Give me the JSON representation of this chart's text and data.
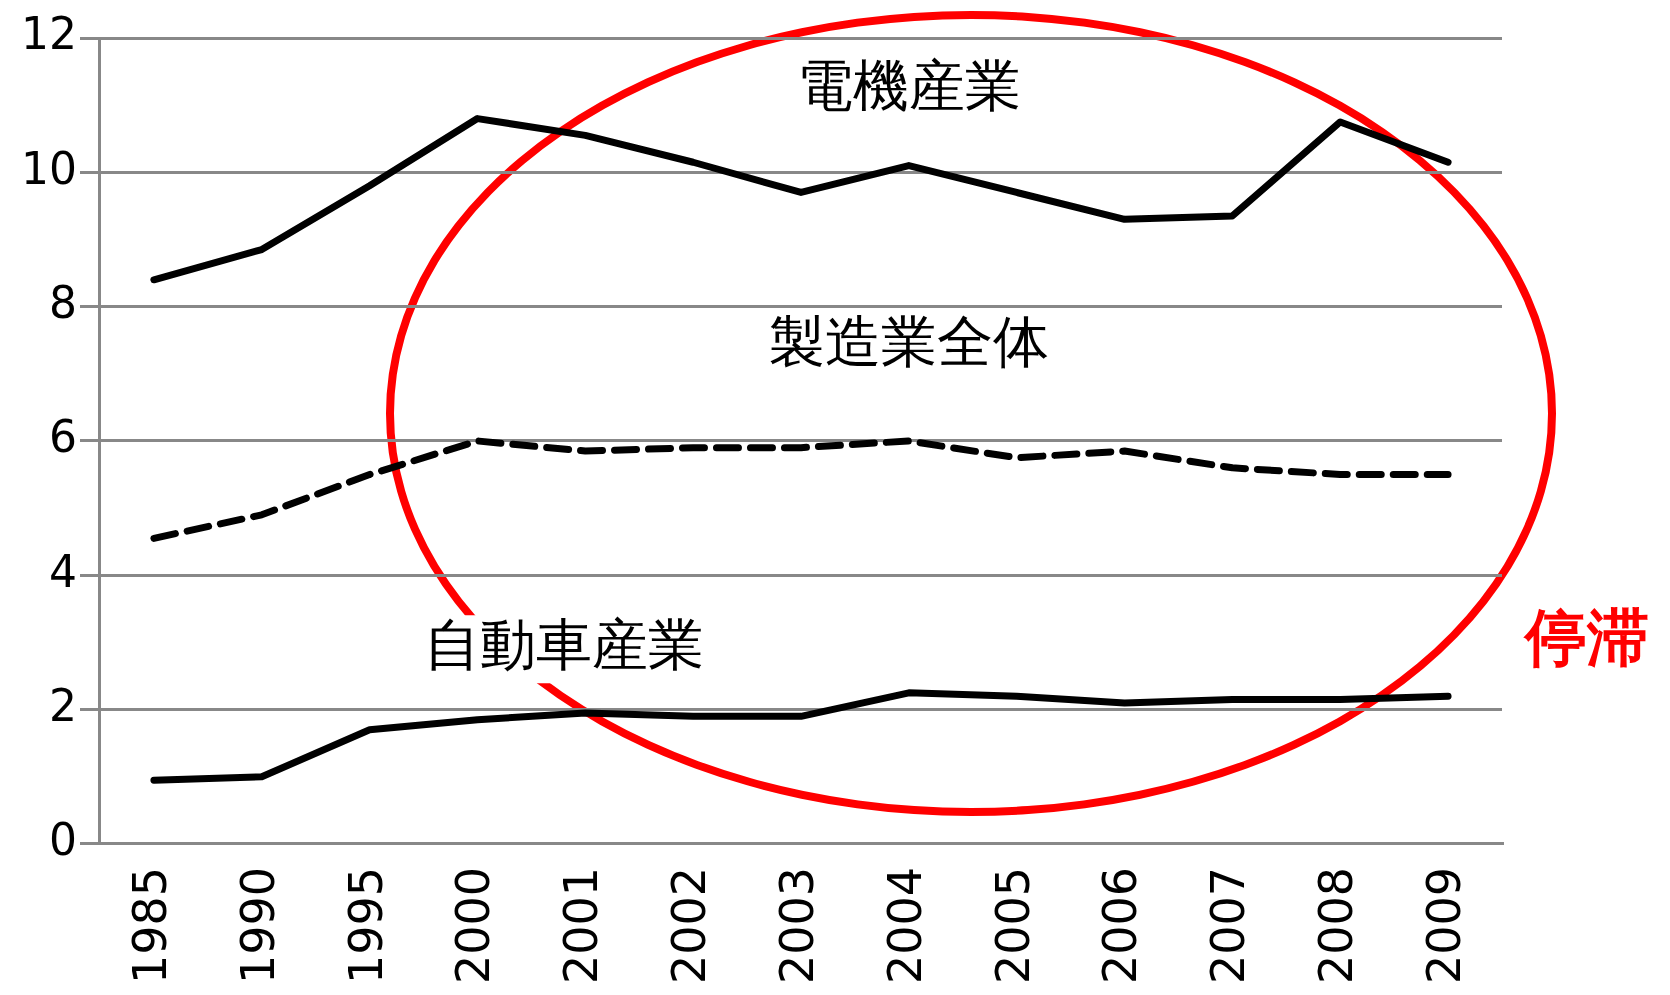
{
  "chart_data": {
    "type": "line",
    "categories": [
      "1985",
      "1990",
      "1995",
      "2000",
      "2001",
      "2002",
      "2003",
      "2004",
      "2005",
      "2006",
      "2007",
      "2008",
      "2009"
    ],
    "series": [
      {
        "name": "電機産業",
        "color": "#000000",
        "line_style": "solid",
        "values": [
          8.4,
          8.85,
          9.8,
          10.8,
          10.55,
          10.15,
          9.7,
          10.1,
          9.7,
          9.3,
          9.35,
          10.75,
          10.15
        ]
      },
      {
        "name": "製造業全体",
        "color": "#000000",
        "line_style": "dashed",
        "values": [
          4.55,
          4.9,
          5.5,
          6.0,
          5.85,
          5.9,
          5.9,
          6.0,
          5.75,
          5.85,
          5.6,
          5.5,
          5.5
        ]
      },
      {
        "name": "自動車産業",
        "color": "#000000",
        "line_style": "solid",
        "values": [
          0.95,
          1.0,
          1.7,
          1.85,
          1.95,
          1.9,
          1.9,
          2.25,
          2.2,
          2.1,
          2.15,
          2.15,
          2.2
        ]
      }
    ],
    "ylim": [
      0,
      12
    ],
    "yticks": [
      0,
      2,
      4,
      6,
      8,
      10,
      12
    ],
    "grid": "y",
    "legend": false,
    "marker": "none",
    "annotations": [
      "停滞"
    ]
  }
}
